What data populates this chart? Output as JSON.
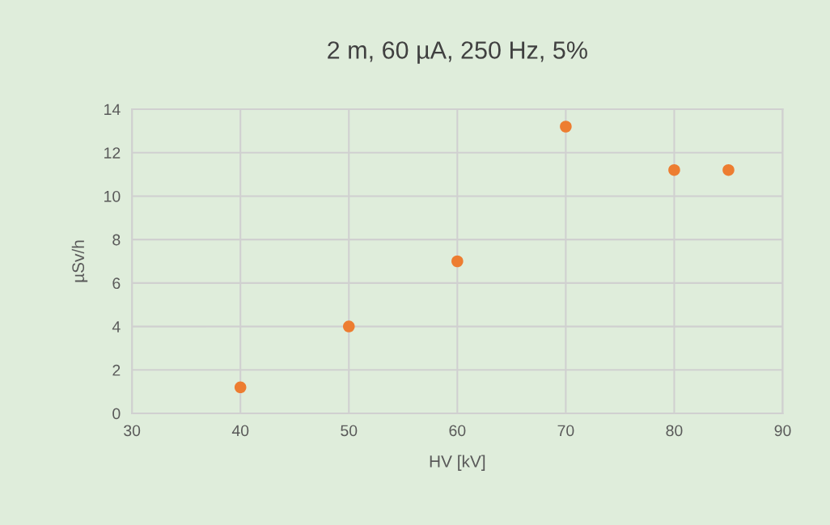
{
  "chart_data": {
    "type": "scatter",
    "title": "2 m, 60 µA, 250 Hz, 5%",
    "xlabel": "HV [kV]",
    "ylabel": "µSv/h",
    "x": [
      40,
      50,
      60,
      70,
      80,
      85
    ],
    "series": [
      {
        "color": "#ed7d31",
        "values": [
          1.2,
          4.0,
          7.0,
          13.2,
          11.2,
          11.2
        ]
      }
    ],
    "xlim": [
      30,
      90
    ],
    "xticks": [
      30,
      40,
      50,
      60,
      70,
      80,
      90
    ],
    "ylim": [
      0,
      14
    ],
    "yticks": [
      0,
      2,
      4,
      6,
      8,
      10,
      12,
      14
    ],
    "grid": true,
    "marker": "circle",
    "legend": false
  }
}
